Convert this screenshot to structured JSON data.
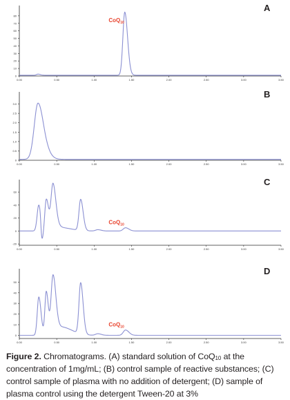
{
  "caption": {
    "lead": "Figure 2.",
    "part1": " Chromatograms. (A) standard solution of CoQ",
    "sub": "10",
    "part2": " at the concentration of 1mg/mL; (B) control sample of reactive substances; (C) control sample of plasma with no addition of detergent; (D) sample of plasma control using the detergent Tween-20 at 3%"
  },
  "colors": {
    "trace": "#8a8fd2",
    "annotation": "#e8432d",
    "axis": "#2b2b2b"
  },
  "chart_data": [
    {
      "type": "line",
      "panel_label": "A",
      "annotation": {
        "main": "CoQ",
        "sub": "10",
        "x": 1.42
      },
      "xlim": [
        0,
        3.5
      ],
      "ylim": [
        0,
        90
      ],
      "x_ticks": [
        "0.00",
        "0.50",
        "1.00",
        "1.50",
        "2.00",
        "2.50",
        "3.00",
        "3.50"
      ],
      "y_ticks": [
        "0",
        "10",
        "20",
        "30",
        "40",
        "50",
        "60",
        "70",
        "80"
      ],
      "baseline": 1,
      "peaks": [
        {
          "x": 0.25,
          "height": 1.5,
          "width": 0.02
        },
        {
          "x": 1.41,
          "height": 84,
          "width": 0.025
        }
      ]
    },
    {
      "type": "line",
      "panel_label": "B",
      "xlim": [
        0,
        3.5
      ],
      "ylim": [
        0,
        3.5
      ],
      "x_ticks": [
        "0.00",
        "0.50",
        "1.00",
        "1.50",
        "2.00",
        "2.50",
        "3.00",
        "3.50"
      ],
      "y_ticks": [
        "0",
        "0.5",
        "1.0",
        "1.5",
        "2.0",
        "2.5",
        "3.0"
      ],
      "baseline": 0.05,
      "peaks": [
        {
          "x": 0.25,
          "height": 3.0,
          "width": 0.05
        },
        {
          "x": 0.4,
          "height": 0.12,
          "width": 0.04
        }
      ]
    },
    {
      "type": "line",
      "panel_label": "C",
      "annotation": {
        "main": "CoQ",
        "sub": "10",
        "x": 1.42
      },
      "xlim": [
        0,
        3.5
      ],
      "ylim": [
        -22,
        75
      ],
      "x_ticks": [
        "0.00",
        "0.50",
        "1.00",
        "1.50",
        "2.00",
        "2.50",
        "3.00",
        "3.50"
      ],
      "y_ticks": [
        "-20",
        "0",
        "20",
        "40",
        "60"
      ],
      "baseline": 0,
      "peaks": [
        {
          "x": 0.26,
          "height": 40,
          "width": 0.022
        },
        {
          "x": 0.3,
          "height": -30,
          "width": 0.012
        },
        {
          "x": 0.36,
          "height": 42,
          "width": 0.018
        },
        {
          "x": 0.41,
          "height": 10,
          "width": 0.05
        },
        {
          "x": 0.45,
          "height": 62,
          "width": 0.025
        },
        {
          "x": 0.55,
          "height": 5,
          "width": 0.1
        },
        {
          "x": 0.82,
          "height": 48,
          "width": 0.022
        },
        {
          "x": 1.05,
          "height": 2,
          "width": 0.03
        },
        {
          "x": 1.42,
          "height": 5,
          "width": 0.03
        }
      ]
    },
    {
      "type": "line",
      "panel_label": "D",
      "annotation": {
        "main": "CoQ",
        "sub": "10",
        "x": 1.42
      },
      "xlim": [
        0,
        3.5
      ],
      "ylim": [
        -3,
        60
      ],
      "x_ticks": [
        "0.00",
        "0.50",
        "1.00",
        "1.50",
        "2.00",
        "2.50",
        "3.00",
        "3.50"
      ],
      "y_ticks": [
        "0",
        "10",
        "20",
        "30",
        "40",
        "50"
      ],
      "baseline": 0,
      "peaks": [
        {
          "x": 0.26,
          "height": 36,
          "width": 0.02
        },
        {
          "x": 0.36,
          "height": 40,
          "width": 0.018
        },
        {
          "x": 0.45,
          "height": 52,
          "width": 0.025
        },
        {
          "x": 0.55,
          "height": 8,
          "width": 0.1
        },
        {
          "x": 0.82,
          "height": 48,
          "width": 0.022
        },
        {
          "x": 1.05,
          "height": 1.5,
          "width": 0.03
        },
        {
          "x": 1.42,
          "height": 5,
          "width": 0.03
        }
      ]
    }
  ]
}
